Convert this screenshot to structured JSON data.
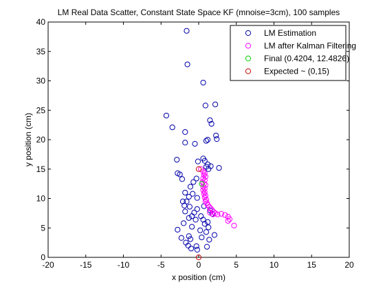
{
  "chart_data": {
    "type": "scatter",
    "title": "LM Real Data Scatter, Constant State Space KF (mnoise=3cm), 100 samples",
    "xlabel": "x position (cm)",
    "ylabel": "y position (cm)",
    "xlim": [
      -20,
      20
    ],
    "ylim": [
      0,
      40
    ],
    "xticks": [
      "-20",
      "-15",
      "-10",
      "-5",
      "0",
      "5",
      "10",
      "15",
      "20"
    ],
    "yticks": [
      "0",
      "5",
      "10",
      "15",
      "20",
      "25",
      "30",
      "35",
      "40"
    ],
    "grid": false,
    "legend_position": "top-right",
    "colors": {
      "lm_estimation": "#0000aa",
      "lm_kalman": "#ff00ff",
      "final": "#00cc00",
      "expected": "#cc0000"
    },
    "series": [
      {
        "name": "LM Estimation",
        "points": [
          [
            -1.6,
            38.5
          ],
          [
            -1.5,
            32.8
          ],
          [
            0.6,
            29.7
          ],
          [
            -4.3,
            24.1
          ],
          [
            -3.5,
            22.1
          ],
          [
            2.2,
            26.0
          ],
          [
            0.9,
            25.8
          ],
          [
            1.5,
            23.3
          ],
          [
            1.7,
            22.7
          ],
          [
            -1.8,
            21.3
          ],
          [
            2.3,
            20.7
          ],
          [
            2.4,
            20.1
          ],
          [
            1.2,
            20.0
          ],
          [
            1.0,
            19.8
          ],
          [
            -1.8,
            19.5
          ],
          [
            -0.5,
            19.3
          ],
          [
            -2.9,
            16.6
          ],
          [
            0.6,
            16.8
          ],
          [
            0.8,
            16.4
          ],
          [
            -0.1,
            16.3
          ],
          [
            1.2,
            15.8
          ],
          [
            1.6,
            15.5
          ],
          [
            2.7,
            15.2
          ],
          [
            1.0,
            15.4
          ],
          [
            1.3,
            15.0
          ],
          [
            -2.5,
            14.1
          ],
          [
            -2.8,
            14.3
          ],
          [
            -2.2,
            13.3
          ],
          [
            -0.3,
            13.4
          ],
          [
            -0.7,
            12.8
          ],
          [
            -1.1,
            12.0
          ],
          [
            -1.8,
            11.0
          ],
          [
            -0.8,
            10.8
          ],
          [
            -1.3,
            10.3
          ],
          [
            -0.2,
            10.1
          ],
          [
            -1.6,
            9.5
          ],
          [
            -2.1,
            9.5
          ],
          [
            -1.9,
            8.8
          ],
          [
            -1.2,
            8.6
          ],
          [
            0.7,
            8.7
          ],
          [
            -0.2,
            8.2
          ],
          [
            1.5,
            8.0
          ],
          [
            -1.8,
            7.8
          ],
          [
            -0.6,
            7.6
          ],
          [
            1.8,
            7.4
          ],
          [
            -0.9,
            7.0
          ],
          [
            0.3,
            7.0
          ],
          [
            -1.3,
            6.7
          ],
          [
            -0.4,
            6.4
          ],
          [
            0.6,
            6.4
          ],
          [
            1.2,
            6.0
          ],
          [
            -2.0,
            5.8
          ],
          [
            0.8,
            5.7
          ],
          [
            -0.9,
            5.2
          ],
          [
            1.3,
            5.1
          ],
          [
            -2.8,
            4.7
          ],
          [
            0.2,
            4.6
          ],
          [
            1.0,
            4.3
          ],
          [
            -1.3,
            3.6
          ],
          [
            -2.3,
            3.3
          ],
          [
            0.4,
            3.4
          ],
          [
            1.4,
            3.0
          ],
          [
            -1.1,
            3.1
          ],
          [
            2.1,
            3.8
          ],
          [
            -1.7,
            2.5
          ],
          [
            -1.4,
            2.0
          ],
          [
            -0.3,
            1.9
          ],
          [
            1.1,
            1.8
          ],
          [
            -1.0,
            1.5
          ],
          [
            -0.2,
            1.3
          ]
        ]
      },
      {
        "name": "LM after Kalman Filtering",
        "points": [
          [
            0.3,
            15.0
          ],
          [
            0.6,
            14.6
          ],
          [
            0.8,
            14.3
          ],
          [
            0.7,
            14.0
          ],
          [
            0.9,
            13.7
          ],
          [
            0.6,
            13.4
          ],
          [
            0.8,
            13.1
          ],
          [
            0.5,
            12.8
          ],
          [
            0.7,
            12.5
          ],
          [
            0.9,
            12.3
          ],
          [
            0.6,
            12.0
          ],
          [
            0.8,
            11.7
          ],
          [
            0.6,
            11.4
          ],
          [
            0.8,
            11.1
          ],
          [
            0.7,
            10.8
          ],
          [
            0.9,
            10.5
          ],
          [
            0.8,
            10.2
          ],
          [
            1.0,
            9.8
          ],
          [
            0.9,
            9.5
          ],
          [
            1.1,
            9.2
          ],
          [
            1.2,
            8.9
          ],
          [
            1.4,
            8.6
          ],
          [
            1.6,
            8.3
          ],
          [
            1.8,
            8.0
          ],
          [
            2.0,
            7.7
          ],
          [
            2.2,
            7.5
          ],
          [
            2.5,
            7.3
          ],
          [
            3.0,
            7.4
          ],
          [
            3.5,
            7.2
          ],
          [
            3.9,
            6.9
          ],
          [
            4.1,
            6.5
          ],
          [
            3.9,
            6.2
          ],
          [
            4.7,
            5.4
          ],
          [
            1.5,
            7.6
          ],
          [
            1.9,
            7.3
          ]
        ]
      },
      {
        "name": "Final (0.4204, 12.4826)",
        "points": [
          [
            0.4204,
            12.4826
          ]
        ]
      },
      {
        "name": "Expected ~ (0,15)",
        "points": [
          [
            0.0,
            0.0
          ],
          [
            0.0,
            15.0
          ]
        ]
      }
    ]
  }
}
